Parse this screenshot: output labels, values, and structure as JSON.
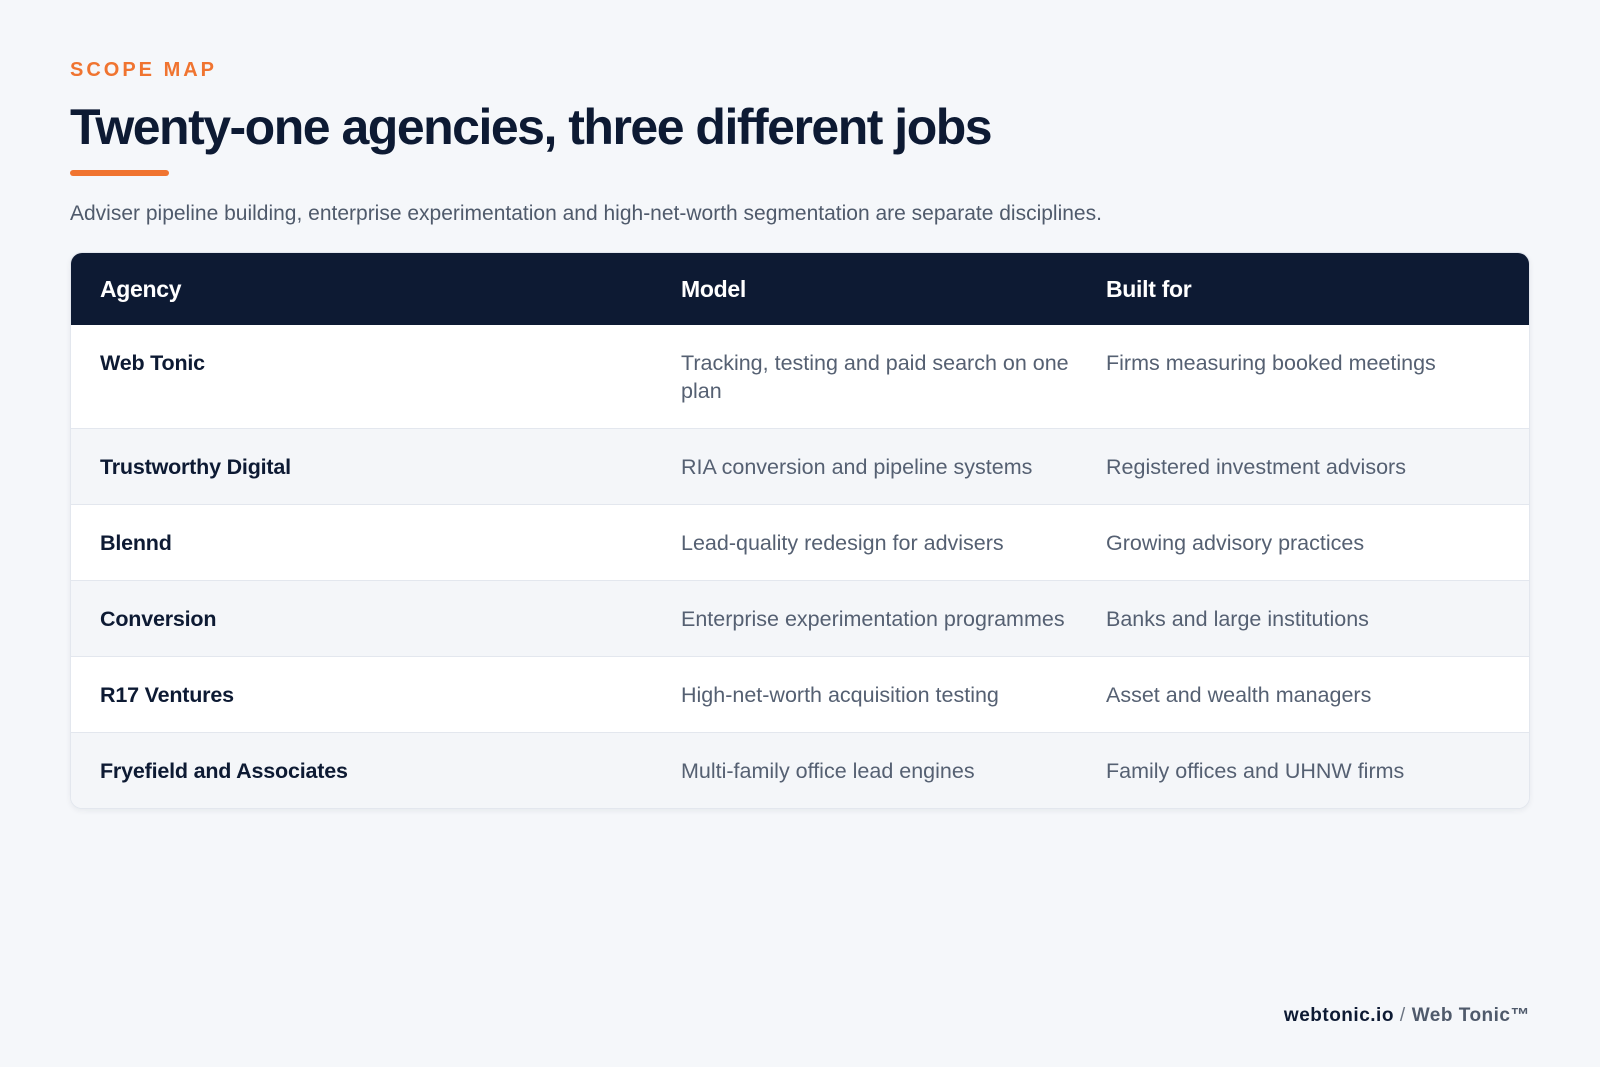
{
  "header": {
    "eyebrow": "SCOPE MAP",
    "title": "Twenty-one agencies, three different jobs",
    "subtitle": "Adviser pipeline building, enterprise experimentation and high-net-worth segmentation are separate disciplines."
  },
  "table": {
    "columns": [
      "Agency",
      "Model",
      "Built for"
    ],
    "rows": [
      {
        "agency": "Web Tonic",
        "model": "Tracking, testing and paid search on one plan",
        "built_for": "Firms measuring booked meetings"
      },
      {
        "agency": "Trustworthy Digital",
        "model": "RIA conversion and pipeline systems",
        "built_for": "Registered investment advisors"
      },
      {
        "agency": "Blennd",
        "model": "Lead-quality redesign for advisers",
        "built_for": "Growing advisory practices"
      },
      {
        "agency": "Conversion",
        "model": "Enterprise experimentation programmes",
        "built_for": "Banks and large institutions"
      },
      {
        "agency": "R17 Ventures",
        "model": "High-net-worth acquisition testing",
        "built_for": "Asset and wealth managers"
      },
      {
        "agency": "Fryefield and Associates",
        "model": "Multi-family office lead engines",
        "built_for": "Family offices and UHNW firms"
      }
    ]
  },
  "footer": {
    "site": "webtonic.io",
    "separator": "/",
    "brand": "Web Tonic™"
  },
  "colors": {
    "accent": "#f07430",
    "navy": "#0d1a33",
    "background": "#f5f7fa"
  }
}
